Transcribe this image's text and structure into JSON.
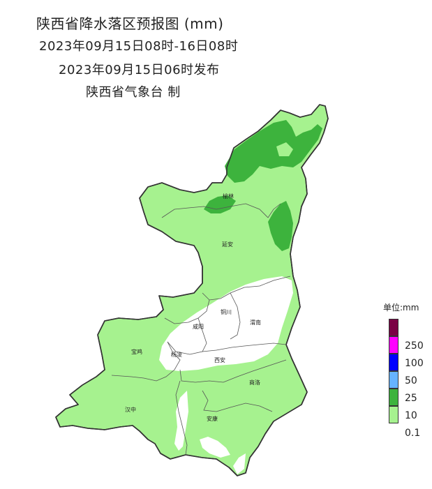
{
  "title": {
    "line1": "陕西省降水落区预报图 (mm)",
    "line2": "2023年09月15日08时-16日08时",
    "line3": "2023年09月15日06时发布",
    "line4": "陕西省气象台 制"
  },
  "cities": {
    "yulin": "榆林",
    "yanan": "延安",
    "tongchuan": "铜川",
    "xianyang": "咸阳",
    "weinan": "渭南",
    "baoji": "宝鸡",
    "yangling": "杨凌",
    "xian": "西安",
    "shangluo": "商洛",
    "hanzhong": "汉中",
    "ankang": "安康"
  },
  "legend": {
    "title": "单位:mm",
    "items": [
      {
        "label": "",
        "color": "#7a0044"
      },
      {
        "label": "250",
        "color": "#ff00ff"
      },
      {
        "label": "100",
        "color": "#0000ff"
      },
      {
        "label": "50",
        "color": "#66b3ff"
      },
      {
        "label": "25",
        "color": "#3db33d"
      },
      {
        "label": "10",
        "color": "#a6f28f"
      },
      {
        "label": "0.1",
        "color": ""
      }
    ]
  },
  "colors": {
    "light_green": "#a6f28f",
    "dark_green": "#3db33d",
    "no_rain": "#ffffff",
    "boundary": "#333333"
  }
}
